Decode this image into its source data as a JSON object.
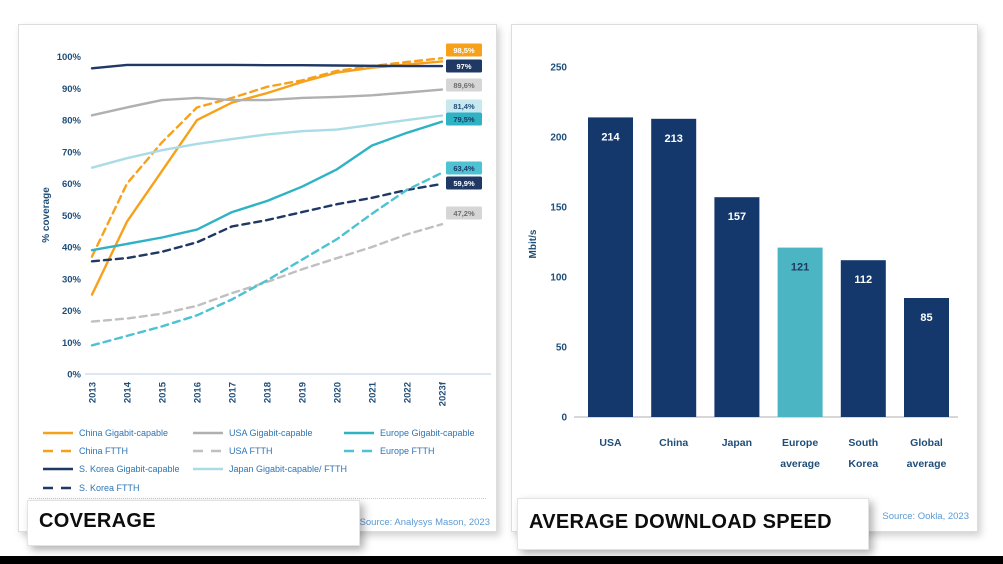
{
  "slide": {
    "background": "#FFFFFF",
    "bottom_bar_color": "#000000"
  },
  "chart_data": [
    {
      "type": "line",
      "title": "COVERAGE",
      "source": "Source: Analysys Mason, 2023",
      "ylabel": "% coverage",
      "x": [
        "2013",
        "2014",
        "2015",
        "2016",
        "2017",
        "2018",
        "2019",
        "2020",
        "2021",
        "2022",
        "2023f"
      ],
      "ylim": [
        0,
        100
      ],
      "ytick_step": 10,
      "ytick_suffix": "%",
      "grid": false,
      "legend_position": "bottom",
      "legend_columns": [
        [
          0,
          1,
          2,
          3
        ],
        [
          4,
          5,
          6
        ],
        [
          7,
          8
        ]
      ],
      "series": [
        {
          "name": "China Gigabit-capable",
          "color": "#F7A11A",
          "dash": false,
          "end_label": "98,5%",
          "end_label_bg": "#F7A11A",
          "end_label_color": "#FFFFFF",
          "values": [
            25,
            48,
            64,
            80,
            85.5,
            88.5,
            92,
            95,
            96.5,
            97.5,
            98.5
          ]
        },
        {
          "name": "China FTTH",
          "color": "#F7A11A",
          "dash": true,
          "end_label": null,
          "end_label_bg": null,
          "end_label_color": null,
          "values": [
            37,
            60,
            73,
            84,
            87,
            90.5,
            92.5,
            95.5,
            97,
            98.3,
            99.5
          ]
        },
        {
          "name": "S. Korea Gigabit-capable",
          "color": "#1F3864",
          "dash": false,
          "end_label": "97%",
          "end_label_bg": "#1F3864",
          "end_label_color": "#FFFFFF",
          "values": [
            96.3,
            97.4,
            97.4,
            97.4,
            97.4,
            97.3,
            97.3,
            97.2,
            97.1,
            97,
            97
          ]
        },
        {
          "name": "S. Korea FTTH",
          "color": "#1F3864",
          "dash": true,
          "end_label": "59,9%",
          "end_label_bg": "#1F3864",
          "end_label_color": "#FFFFFF",
          "values": [
            35.5,
            36.5,
            38.5,
            41.5,
            46.5,
            48.5,
            51,
            53.5,
            55.5,
            58,
            59.9
          ]
        },
        {
          "name": "USA Gigabit-capable",
          "color": "#B0B0B0",
          "dash": false,
          "end_label": "89,6%",
          "end_label_bg": "#D6D6D6",
          "end_label_color": "#6E6E6E",
          "values": [
            81.5,
            84,
            86.3,
            87,
            86.3,
            86.3,
            87,
            87.3,
            87.8,
            88.7,
            89.6
          ]
        },
        {
          "name": "USA FTTH",
          "color": "#C0C0C0",
          "dash": true,
          "end_label": "47,2%",
          "end_label_bg": "#D6D6D6",
          "end_label_color": "#6E6E6E",
          "values": [
            16.5,
            17.5,
            19,
            21.5,
            25.5,
            29,
            33,
            36.5,
            40,
            44,
            47.2
          ]
        },
        {
          "name": "Japan Gigabit-capable/ FTTH",
          "color": "#AADCE6",
          "dash": false,
          "end_label": "81,4%",
          "end_label_bg": "#C7E8EF",
          "end_label_color": "#1F4E79",
          "values": [
            65,
            68,
            70.5,
            72.5,
            74,
            75.5,
            76.5,
            77,
            78.5,
            80,
            81.4
          ]
        },
        {
          "name": "Europe Gigabit-capable",
          "color": "#2FB3C4",
          "dash": false,
          "end_label": "79,5%",
          "end_label_bg": "#2FB3C4",
          "end_label_color": "#1F3864",
          "values": [
            39,
            41,
            43,
            45.5,
            51,
            54.5,
            59,
            64.5,
            72,
            76,
            79.5
          ]
        },
        {
          "name": "Europe FTTH",
          "color": "#4CC2D2",
          "dash": true,
          "end_label": "63,4%",
          "end_label_bg": "#4CC2D2",
          "end_label_color": "#1F3864",
          "values": [
            9,
            12,
            15,
            18.5,
            23.5,
            29.5,
            36,
            42.5,
            50.5,
            58,
            63.4
          ]
        }
      ]
    },
    {
      "type": "bar",
      "title": "AVERAGE DOWNLOAD SPEED",
      "source": "Source: Ookla, 2023",
      "ylabel": "Mbit/s",
      "categories": [
        [
          "USA"
        ],
        [
          "China"
        ],
        [
          "Japan"
        ],
        [
          "Europe",
          "average"
        ],
        [
          "South",
          "Korea"
        ],
        [
          "Global",
          "average"
        ]
      ],
      "values": [
        214,
        213,
        157,
        121,
        112,
        85
      ],
      "bar_colors": [
        "#14386B",
        "#14386B",
        "#14386B",
        "#4BB5C4",
        "#14386B",
        "#14386B"
      ],
      "label_colors": [
        "#FFFFFF",
        "#FFFFFF",
        "#FFFFFF",
        "#1F3864",
        "#FFFFFF",
        "#FFFFFF"
      ],
      "ylim": [
        0,
        250
      ],
      "ytick_step": 50,
      "grid": false
    }
  ]
}
